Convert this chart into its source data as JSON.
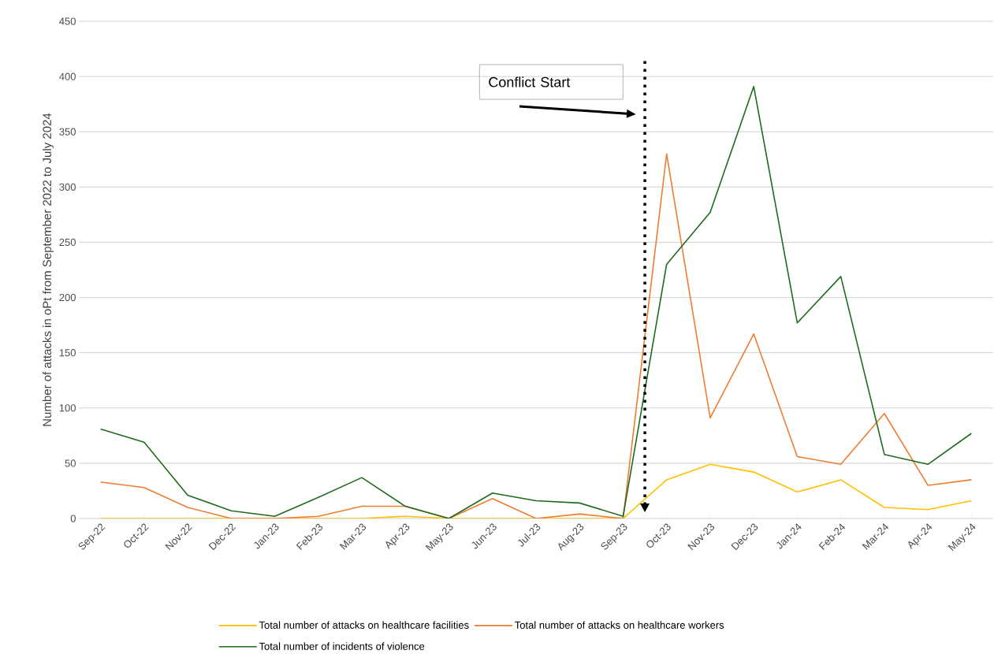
{
  "chart_data": {
    "type": "line",
    "ylabel": "Number of attacks in oPt from September 2022 to July 2024",
    "categories": [
      "Sep-22",
      "Oct-22",
      "Nov-22",
      "Dec-22",
      "Jan-23",
      "Feb-23",
      "Mar-23",
      "Apr-23",
      "May-23",
      "Jun-23",
      "Jul-23",
      "Aug-23",
      "Sep-23",
      "Oct-23",
      "Nov-23",
      "Dec-23",
      "Jan-24",
      "Feb-24",
      "Mar-24",
      "Apr-24",
      "May-24"
    ],
    "series": [
      {
        "name": "Total number of attacks on healthcare facilities",
        "color": "#ffc000",
        "values": [
          0,
          0,
          0,
          0,
          0,
          0,
          0,
          2,
          0,
          0,
          0,
          0,
          0,
          35,
          49,
          42,
          24,
          35,
          10,
          8,
          16
        ]
      },
      {
        "name": "Total number of attacks on healthcare workers",
        "color": "#ed7d31",
        "values": [
          33,
          28,
          10,
          0,
          0,
          2,
          11,
          11,
          0,
          18,
          0,
          4,
          0,
          330,
          91,
          167,
          56,
          49,
          95,
          30,
          35
        ]
      },
      {
        "name": "Total number of incidents of violence",
        "color": "#1e6b1e",
        "values": [
          81,
          69,
          21,
          7,
          2,
          19,
          37,
          11,
          0,
          23,
          16,
          14,
          2,
          230,
          277,
          391,
          177,
          219,
          58,
          49,
          77
        ]
      }
    ],
    "ylim": [
      0,
      450
    ],
    "yticks": [
      0,
      50,
      100,
      150,
      200,
      250,
      300,
      350,
      400,
      450
    ],
    "grid": "y",
    "legend": "bottom",
    "marker": "none",
    "line_style": "solid",
    "annotations": [
      "Conflict Start"
    ],
    "ref_lines": [
      {
        "axis": "x",
        "value": "Oct-23",
        "color": "#000000",
        "line_style": "dotted"
      }
    ]
  }
}
